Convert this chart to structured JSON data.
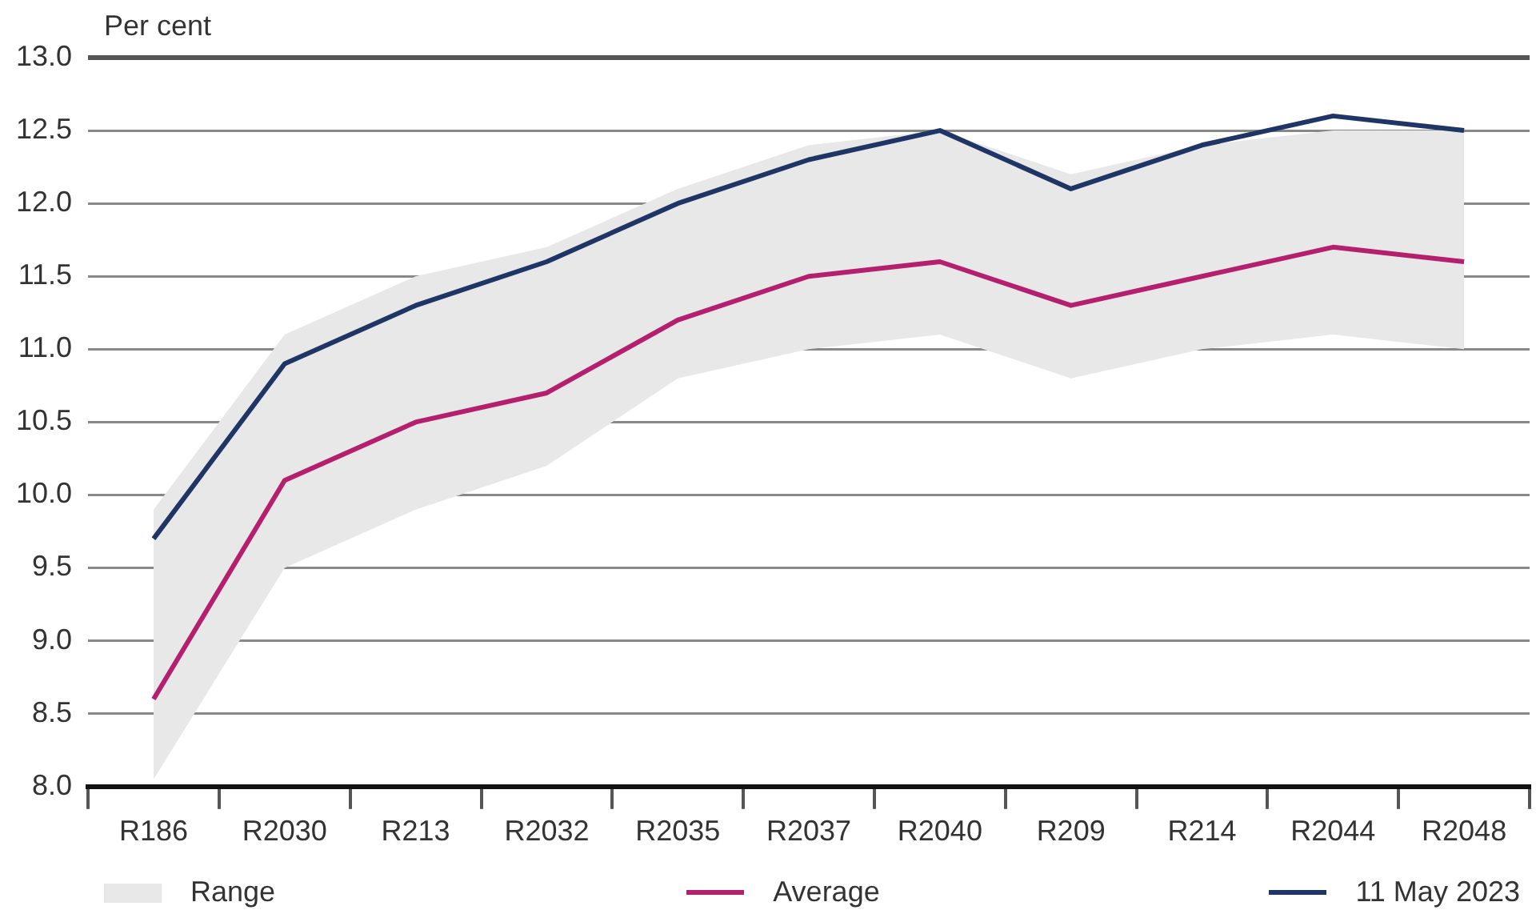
{
  "chart_data": {
    "type": "line",
    "ylabel": "Per cent",
    "categories": [
      "R186",
      "R2030",
      "R213",
      "R2032",
      "R2035",
      "R2037",
      "R2040",
      "R209",
      "R214",
      "R2044",
      "R2048"
    ],
    "series": [
      {
        "name": "Range",
        "type": "area",
        "color": "#e8e8e8",
        "lower": [
          8.05,
          9.5,
          9.9,
          10.2,
          10.8,
          11.0,
          11.1,
          10.8,
          11.0,
          11.1,
          11.0
        ],
        "upper": [
          9.9,
          11.1,
          11.5,
          11.7,
          12.1,
          12.4,
          12.5,
          12.2,
          12.4,
          12.5,
          12.5
        ],
        "values": [
          null,
          null,
          null,
          null,
          null,
          null,
          null,
          null,
          null,
          null,
          null
        ]
      },
      {
        "name": "Average",
        "type": "line",
        "color": "#b5206e",
        "values": [
          8.6,
          10.1,
          10.5,
          10.7,
          11.2,
          11.5,
          11.6,
          11.3,
          11.5,
          11.7,
          11.6
        ]
      },
      {
        "name": "11 May 2023",
        "type": "line",
        "color": "#1f3566",
        "values": [
          9.7,
          10.9,
          11.3,
          11.6,
          12.0,
          12.3,
          12.5,
          12.1,
          12.4,
          12.6,
          12.5
        ]
      }
    ],
    "ylim": [
      8.0,
      13.0
    ],
    "yticks": [
      {
        "value": 8,
        "label": "8.0"
      },
      {
        "value": 8.5,
        "label": "8.5"
      },
      {
        "value": 9,
        "label": "9.0"
      },
      {
        "value": 9.5,
        "label": "9.5"
      },
      {
        "value": 10,
        "label": "10.0"
      },
      {
        "value": 10.5,
        "label": "10.5"
      },
      {
        "value": 11,
        "label": "11.0"
      },
      {
        "value": 11.5,
        "label": "11.5"
      },
      {
        "value": 12,
        "label": "12.0"
      },
      {
        "value": 12.5,
        "label": "12.5"
      },
      {
        "value": 13,
        "label": "13.0"
      }
    ],
    "grid": "y",
    "legend": "bottom",
    "marker": "none",
    "line_style": "solid"
  }
}
